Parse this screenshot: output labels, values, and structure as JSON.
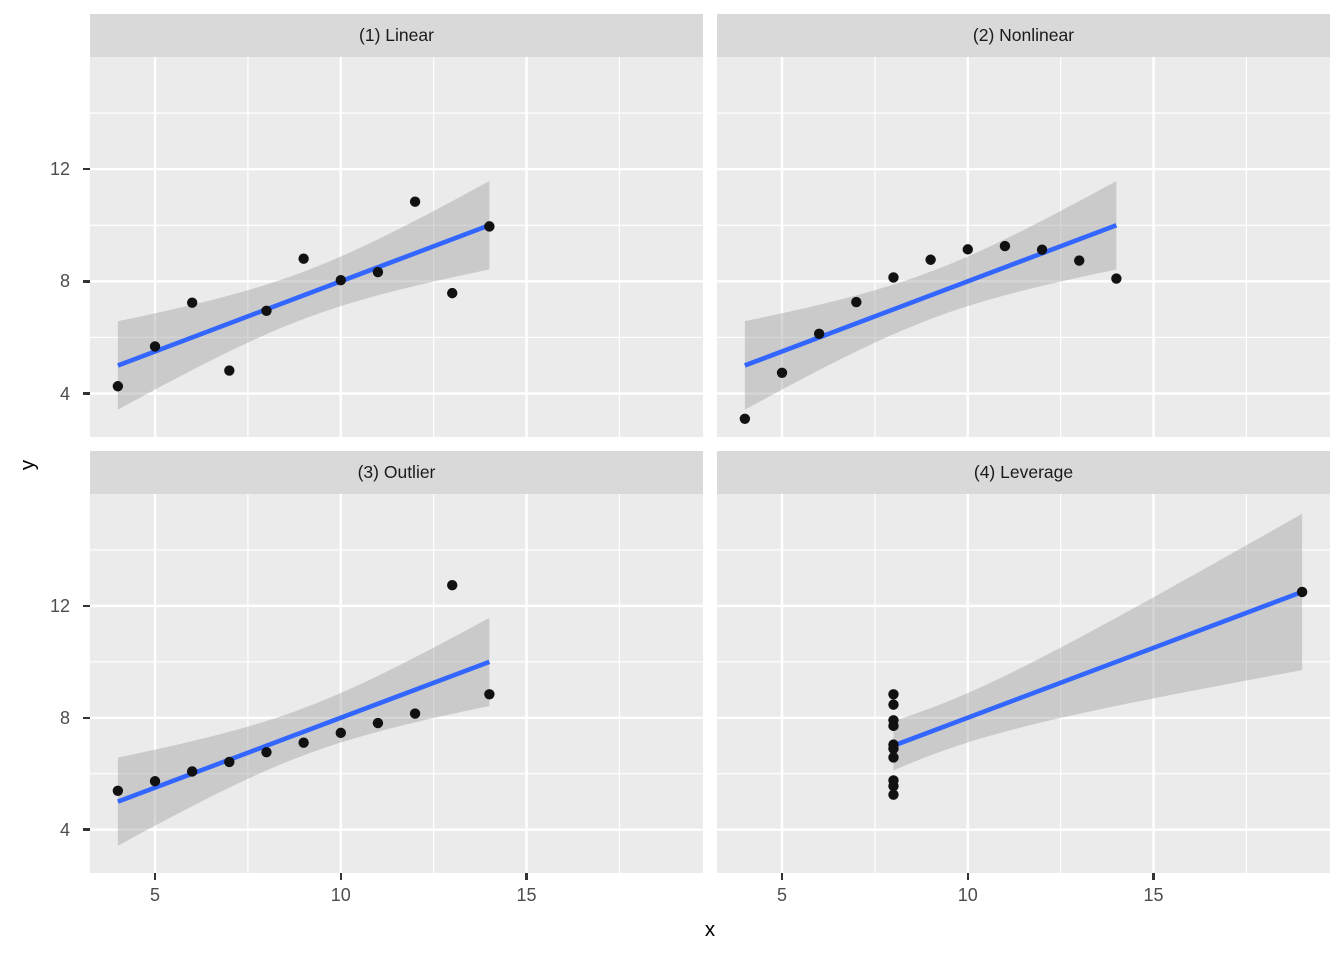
{
  "figure": {
    "x_axis_title": "x",
    "y_axis_title": "y",
    "background": "#FFFFFF"
  },
  "style": {
    "panel_bg": "#EBEBEB",
    "strip_bg": "#D9D9D9",
    "strip_text_color": "#1A1A1A",
    "grid_color": "#FFFFFF",
    "ribbon_color": "#999999",
    "ribbon_opacity": 0.4,
    "line_color": "#3366FF",
    "point_color": "#111111",
    "tick_text_color": "#4D4D4D",
    "tick_mark_color": "#333333",
    "axis_title_color": "#000000"
  },
  "axes": {
    "x_ticks": [
      5,
      10,
      15
    ],
    "x_minor_ticks": [
      7.5,
      12.5,
      17.5
    ],
    "x_domain": [
      3.25,
      19.75
    ],
    "y_ticks": [
      4,
      8,
      12
    ],
    "y_minor_ticks": [
      6,
      10,
      14
    ],
    "y_domain": [
      2.45,
      16.0
    ]
  },
  "chart_data": [
    {
      "type": "scatter",
      "title": "(1) Linear",
      "xlabel": "x",
      "ylabel": "y",
      "x": [
        10,
        8,
        13,
        9,
        11,
        14,
        6,
        4,
        12,
        7,
        5
      ],
      "y": [
        8.04,
        6.95,
        7.58,
        8.81,
        8.33,
        9.96,
        7.24,
        4.26,
        10.84,
        4.82,
        5.68
      ],
      "smooth": {
        "method": "lm",
        "level": 0.95,
        "ribbon": true
      }
    },
    {
      "type": "scatter",
      "title": "(2) Nonlinear",
      "xlabel": "x",
      "ylabel": "y",
      "x": [
        10,
        8,
        13,
        9,
        11,
        14,
        6,
        4,
        12,
        7,
        5
      ],
      "y": [
        9.14,
        8.14,
        8.74,
        8.77,
        9.26,
        8.1,
        6.13,
        3.1,
        9.13,
        7.26,
        4.74
      ],
      "smooth": {
        "method": "lm",
        "level": 0.95,
        "ribbon": true
      }
    },
    {
      "type": "scatter",
      "title": "(3) Outlier",
      "xlabel": "x",
      "ylabel": "y",
      "x": [
        10,
        8,
        13,
        9,
        11,
        14,
        6,
        4,
        12,
        7,
        5
      ],
      "y": [
        7.46,
        6.77,
        12.74,
        7.11,
        7.81,
        8.84,
        6.08,
        5.39,
        8.15,
        6.42,
        5.73
      ],
      "smooth": {
        "method": "lm",
        "level": 0.95,
        "ribbon": true
      }
    },
    {
      "type": "scatter",
      "title": "(4) Leverage",
      "xlabel": "x",
      "ylabel": "y",
      "x": [
        8,
        8,
        8,
        8,
        8,
        8,
        8,
        19,
        8,
        8,
        8
      ],
      "y": [
        6.58,
        5.76,
        7.71,
        8.84,
        8.47,
        7.04,
        5.25,
        12.5,
        5.56,
        7.91,
        6.89
      ],
      "smooth": {
        "method": "lm",
        "level": 0.95,
        "ribbon": true
      }
    }
  ]
}
